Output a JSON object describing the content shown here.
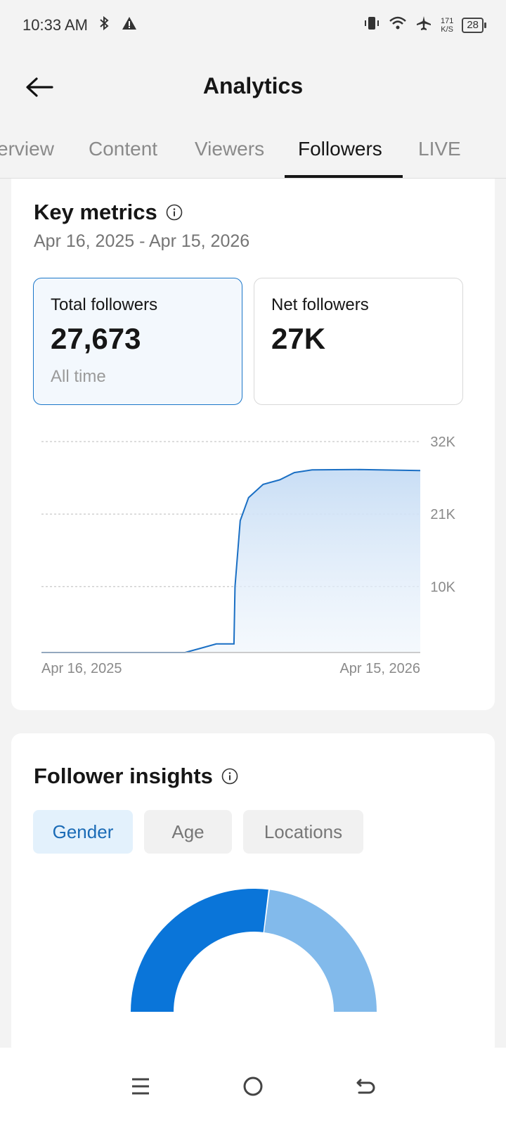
{
  "status_bar": {
    "time": "10:33 AM",
    "speed_value": "171",
    "speed_unit": "K/S",
    "battery": "28"
  },
  "header": {
    "title": "Analytics",
    "back_icon": "arrow-left-icon"
  },
  "tabs": [
    {
      "label": "Overview",
      "display": "erview",
      "active": false
    },
    {
      "label": "Content",
      "active": false
    },
    {
      "label": "Viewers",
      "active": false
    },
    {
      "label": "Followers",
      "active": true
    },
    {
      "label": "LIVE",
      "active": false
    }
  ],
  "key_metrics": {
    "title": "Key metrics",
    "date_range": "Apr 16, 2025 - Apr 15, 2026",
    "total_followers": {
      "label": "Total followers",
      "value": "27,673",
      "sub": "All time"
    },
    "net_followers": {
      "label": "Net followers",
      "value": "27K"
    }
  },
  "chart_data": {
    "type": "area",
    "x_start_label": "Apr 16, 2025",
    "x_end_label": "Apr 15, 2026",
    "y_ticks": [
      "32K",
      "21K",
      "10K"
    ],
    "ylim": [
      0,
      32000
    ],
    "grid": true,
    "points": [
      {
        "x": "2025-04-16",
        "y": 0
      },
      {
        "x": "2025-09-01",
        "y": 0
      },
      {
        "x": "2025-09-15",
        "y": 600
      },
      {
        "x": "2025-10-01",
        "y": 1300
      },
      {
        "x": "2025-10-18",
        "y": 1300
      },
      {
        "x": "2025-10-19",
        "y": 10000
      },
      {
        "x": "2025-10-24",
        "y": 20000
      },
      {
        "x": "2025-11-01",
        "y": 23500
      },
      {
        "x": "2025-11-15",
        "y": 25500
      },
      {
        "x": "2025-12-01",
        "y": 26200
      },
      {
        "x": "2025-12-15",
        "y": 27300
      },
      {
        "x": "2026-01-01",
        "y": 27700
      },
      {
        "x": "2026-02-15",
        "y": 27750
      },
      {
        "x": "2026-04-15",
        "y": 27600
      }
    ],
    "line_color": "#1a6fc4",
    "fill_color": "#cfe3f7"
  },
  "follower_insights": {
    "title": "Follower insights",
    "chips": [
      {
        "label": "Gender",
        "active": true
      },
      {
        "label": "Age",
        "active": false
      },
      {
        "label": "Locations",
        "active": false
      }
    ],
    "gender_split": {
      "segments": [
        {
          "value": 0.54,
          "color": "#0a75d9"
        },
        {
          "value": 0.46,
          "color": "#82baeb"
        }
      ]
    }
  },
  "nav_bar": {
    "icons": [
      "menu-icon",
      "home-circle-icon",
      "back-icon"
    ]
  }
}
